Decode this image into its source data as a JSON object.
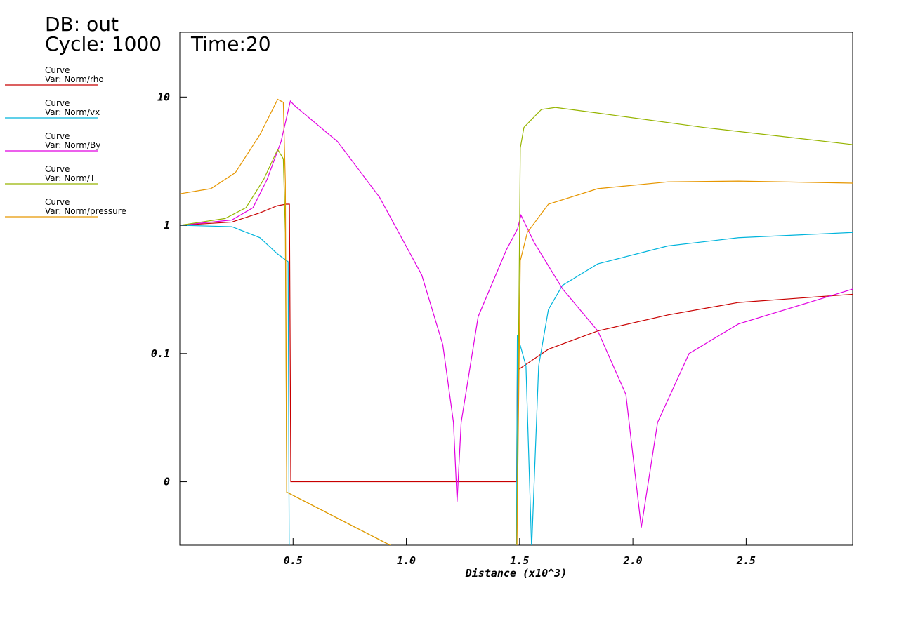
{
  "chart_data": {
    "type": "line",
    "db_label": "DB: out",
    "cycle_label": "Cycle: 1000",
    "time_label": "Time:20",
    "xlabel": "Distance (x10^3)",
    "log_y": true,
    "xlim": [
      0,
      2.97
    ],
    "ylim": [
      0.0032,
      32
    ],
    "xticks": [
      0.5,
      {
        "value": 1,
        "label": "1.0"
      },
      1.5,
      {
        "value": 2,
        "label": "2.0"
      },
      2.5
    ],
    "yticks": [
      10,
      1,
      0.1,
      {
        "value": 0.01,
        "label": "0"
      }
    ],
    "series": [
      {
        "title": "Curve",
        "name": "Var: Norm/rho",
        "color": "#c80000",
        "x": [
          0,
          0.23,
          0.354,
          0.43,
          0.469,
          0.484,
          0.49,
          1.487,
          1.49,
          1.627,
          1.845,
          2.155,
          2.466,
          2.975
        ],
        "values": [
          1,
          1.06,
          1.25,
          1.42,
          1.46,
          1.46,
          0.01,
          0.01,
          0.074,
          0.108,
          0.15,
          0.2,
          0.25,
          0.29
        ]
      },
      {
        "title": "Curve",
        "name": "Var: Norm/vx",
        "color": "#00b4dc",
        "x": [
          0,
          0.23,
          0.354,
          0.43,
          0.478,
          0.484,
          1.485,
          1.49,
          1.528,
          1.553,
          1.584,
          1.627,
          1.689,
          1.845,
          2.155,
          2.466,
          2.975
        ],
        "values": [
          1,
          0.975,
          0.8,
          0.6,
          0.52,
          0.001,
          0.001,
          0.14,
          0.08,
          0.003,
          0.08,
          0.22,
          0.34,
          0.5,
          0.69,
          0.8,
          0.88
        ]
      },
      {
        "title": "Curve",
        "name": "Var: Norm/By",
        "color": "#e100e1",
        "x": [
          0,
          0.23,
          0.323,
          0.385,
          0.447,
          0.488,
          0.509,
          0.696,
          0.882,
          1.068,
          1.161,
          1.208,
          1.224,
          1.242,
          1.317,
          1.441,
          1.491,
          1.506,
          1.565,
          1.689,
          1.845,
          1.969,
          2.037,
          2.109,
          2.248,
          2.466,
          2.975
        ],
        "values": [
          1,
          1.1,
          1.37,
          2.27,
          4.5,
          9.3,
          8.5,
          4.5,
          1.65,
          0.41,
          0.117,
          0.029,
          0.007,
          0.029,
          0.194,
          0.64,
          0.94,
          1.2,
          0.73,
          0.32,
          0.15,
          0.048,
          0.0044,
          0.029,
          0.1,
          0.17,
          0.32
        ]
      },
      {
        "title": "Curve",
        "name": "Var: Norm/T",
        "color": "#96b400",
        "x": [
          0,
          0.2,
          0.292,
          0.37,
          0.432,
          0.457,
          0.466,
          0.472,
          1.485,
          1.503,
          1.519,
          1.596,
          1.658,
          1.845,
          2.311,
          2.975
        ],
        "values": [
          1,
          1.13,
          1.37,
          2.27,
          3.9,
          3.3,
          0.88,
          0.0083,
          0.001,
          4.0,
          5.8,
          8.0,
          8.3,
          7.5,
          5.8,
          4.25
        ]
      },
      {
        "title": "Curve",
        "name": "Var: Norm/pressure",
        "color": "#e69600",
        "x": [
          0,
          0.137,
          0.245,
          0.354,
          0.432,
          0.457,
          0.466,
          0.472,
          1.485,
          1.503,
          1.534,
          1.627,
          1.845,
          2.155,
          2.466,
          2.975
        ],
        "values": [
          1.76,
          1.93,
          2.57,
          5.1,
          9.6,
          9.1,
          2.13,
          0.0083,
          0.001,
          0.53,
          0.88,
          1.46,
          1.93,
          2.18,
          2.21,
          2.13
        ]
      }
    ]
  }
}
